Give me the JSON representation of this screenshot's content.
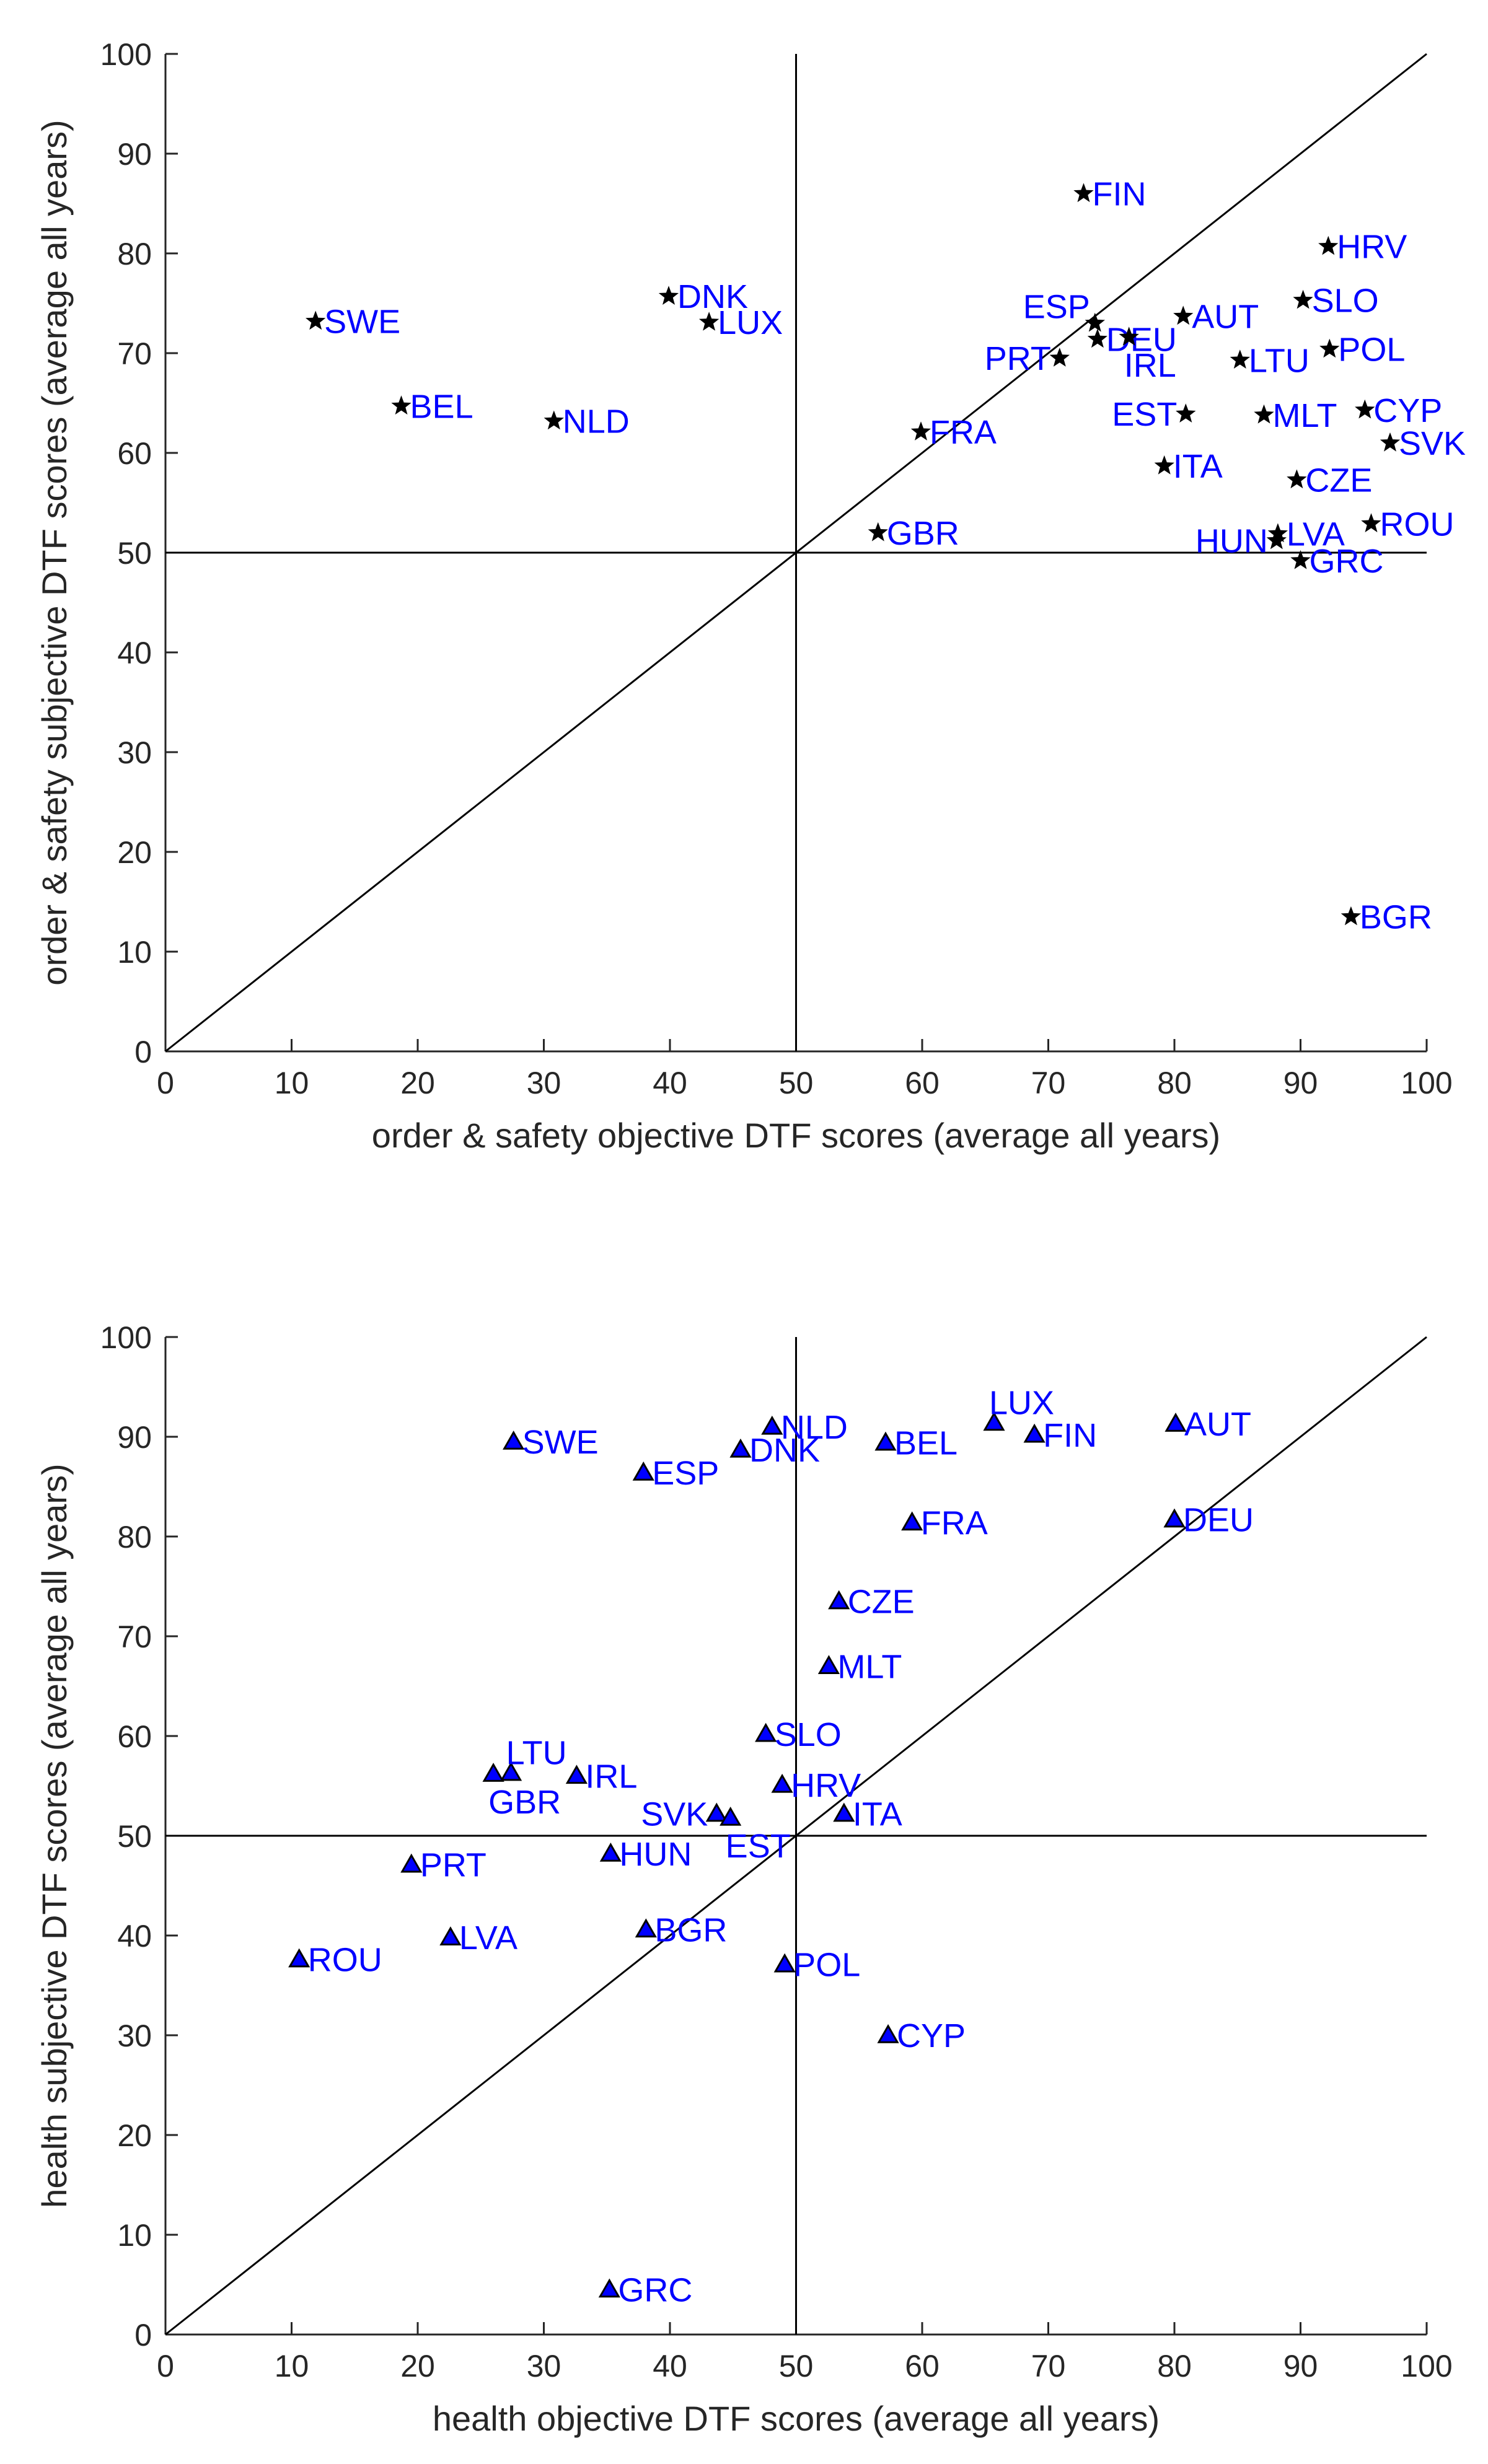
{
  "chart_data": [
    {
      "type": "scatter",
      "xlabel": "order & safety objective DTF scores (average all years)",
      "ylabel": "order & safety subjective DTF scores (average all years)",
      "xlim": [
        0,
        100
      ],
      "ylim": [
        0,
        100
      ],
      "xticks": [
        0,
        10,
        20,
        30,
        40,
        50,
        60,
        70,
        80,
        90,
        100
      ],
      "yticks": [
        0,
        10,
        20,
        30,
        40,
        50,
        60,
        70,
        80,
        90,
        100
      ],
      "reference_lines": {
        "vertical_x": 50,
        "horizontal_y": 50,
        "diagonal": "y = x"
      },
      "marker": "star",
      "marker_color": "#000000",
      "label_color": "#0000ff",
      "points": [
        {
          "label": "FIN",
          "x": 72.8,
          "y": 86.0,
          "pos": "right"
        },
        {
          "label": "HRV",
          "x": 92.2,
          "y": 80.7,
          "pos": "right"
        },
        {
          "label": "DNK",
          "x": 39.9,
          "y": 75.7,
          "pos": "right"
        },
        {
          "label": "SLO",
          "x": 90.2,
          "y": 75.3,
          "pos": "right"
        },
        {
          "label": "SWE",
          "x": 11.9,
          "y": 73.2,
          "pos": "right"
        },
        {
          "label": "LUX",
          "x": 43.1,
          "y": 73.1,
          "pos": "right"
        },
        {
          "label": "AUT",
          "x": 80.7,
          "y": 73.7,
          "pos": "right"
        },
        {
          "label": "ESP",
          "x": 73.7,
          "y": 73.0,
          "pos": "ul"
        },
        {
          "label": "DEU",
          "x": 73.9,
          "y": 71.4,
          "pos": "right"
        },
        {
          "label": "IRL",
          "x": 76.4,
          "y": 71.6,
          "pos": "below"
        },
        {
          "label": "PRT",
          "x": 70.9,
          "y": 69.5,
          "pos": "left"
        },
        {
          "label": "LTU",
          "x": 85.2,
          "y": 69.3,
          "pos": "right"
        },
        {
          "label": "POL",
          "x": 92.3,
          "y": 70.4,
          "pos": "right"
        },
        {
          "label": "BEL",
          "x": 18.7,
          "y": 64.7,
          "pos": "right"
        },
        {
          "label": "NLD",
          "x": 30.8,
          "y": 63.2,
          "pos": "right"
        },
        {
          "label": "EST",
          "x": 80.9,
          "y": 63.9,
          "pos": "left"
        },
        {
          "label": "MLT",
          "x": 87.1,
          "y": 63.8,
          "pos": "right"
        },
        {
          "label": "CYP",
          "x": 95.1,
          "y": 64.3,
          "pos": "right"
        },
        {
          "label": "FRA",
          "x": 59.9,
          "y": 62.1,
          "pos": "right"
        },
        {
          "label": "SVK",
          "x": 97.1,
          "y": 61.0,
          "pos": "right"
        },
        {
          "label": "ITA",
          "x": 79.2,
          "y": 58.7,
          "pos": "right"
        },
        {
          "label": "CZE",
          "x": 89.7,
          "y": 57.3,
          "pos": "right"
        },
        {
          "label": "GBR",
          "x": 56.5,
          "y": 52.0,
          "pos": "right"
        },
        {
          "label": "ROU",
          "x": 95.6,
          "y": 52.9,
          "pos": "right"
        },
        {
          "label": "HUN",
          "x": 88.1,
          "y": 51.2,
          "pos": "left"
        },
        {
          "label": "LVA",
          "x": 88.2,
          "y": 51.9,
          "pos": "right"
        },
        {
          "label": "GRC",
          "x": 90.0,
          "y": 49.2,
          "pos": "right"
        },
        {
          "label": "BGR",
          "x": 94.0,
          "y": 13.5,
          "pos": "right"
        }
      ]
    },
    {
      "type": "scatter",
      "xlabel": "health objective DTF scores (average all years)",
      "ylabel": "health subjective DTF scores (average all years)",
      "xlim": [
        0,
        100
      ],
      "ylim": [
        0,
        100
      ],
      "xticks": [
        0,
        10,
        20,
        30,
        40,
        50,
        60,
        70,
        80,
        90,
        100
      ],
      "yticks": [
        0,
        10,
        20,
        30,
        40,
        50,
        60,
        70,
        80,
        90,
        100
      ],
      "reference_lines": {
        "vertical_x": 50,
        "horizontal_y": 50,
        "diagonal": "y = x"
      },
      "marker": "triangle",
      "marker_color": "#0000ff",
      "label_color": "#0000ff",
      "points": [
        {
          "label": "LUX",
          "x": 65.7,
          "y": 91.4,
          "pos": "above"
        },
        {
          "label": "AUT",
          "x": 80.1,
          "y": 91.3,
          "pos": "right"
        },
        {
          "label": "NLD",
          "x": 48.1,
          "y": 91.0,
          "pos": "right"
        },
        {
          "label": "FIN",
          "x": 68.9,
          "y": 90.2,
          "pos": "right"
        },
        {
          "label": "SWE",
          "x": 27.6,
          "y": 89.5,
          "pos": "right"
        },
        {
          "label": "BEL",
          "x": 57.1,
          "y": 89.4,
          "pos": "right"
        },
        {
          "label": "DNK",
          "x": 45.6,
          "y": 88.7,
          "pos": "right"
        },
        {
          "label": "ESP",
          "x": 37.9,
          "y": 86.4,
          "pos": "right"
        },
        {
          "label": "DEU",
          "x": 80.0,
          "y": 81.7,
          "pos": "right"
        },
        {
          "label": "FRA",
          "x": 59.2,
          "y": 81.4,
          "pos": "right"
        },
        {
          "label": "CZE",
          "x": 53.4,
          "y": 73.5,
          "pos": "right"
        },
        {
          "label": "MLT",
          "x": 52.6,
          "y": 67.0,
          "pos": "right"
        },
        {
          "label": "SLO",
          "x": 47.6,
          "y": 60.2,
          "pos": "right"
        },
        {
          "label": "LTU",
          "x": 27.4,
          "y": 56.3,
          "pos": "above"
        },
        {
          "label": "GBR",
          "x": 26.0,
          "y": 56.2,
          "pos": "below"
        },
        {
          "label": "IRL",
          "x": 32.6,
          "y": 56.0,
          "pos": "right"
        },
        {
          "label": "HRV",
          "x": 48.9,
          "y": 55.1,
          "pos": "right"
        },
        {
          "label": "SVK",
          "x": 43.7,
          "y": 52.2,
          "pos": "left"
        },
        {
          "label": "EST",
          "x": 44.8,
          "y": 51.8,
          "pos": "below"
        },
        {
          "label": "ITA",
          "x": 53.8,
          "y": 52.2,
          "pos": "right"
        },
        {
          "label": "HUN",
          "x": 35.3,
          "y": 48.2,
          "pos": "right"
        },
        {
          "label": "PRT",
          "x": 19.5,
          "y": 47.1,
          "pos": "right"
        },
        {
          "label": "BGR",
          "x": 38.1,
          "y": 40.6,
          "pos": "right"
        },
        {
          "label": "LVA",
          "x": 22.6,
          "y": 39.8,
          "pos": "right"
        },
        {
          "label": "ROU",
          "x": 10.6,
          "y": 37.6,
          "pos": "right"
        },
        {
          "label": "POL",
          "x": 49.1,
          "y": 37.1,
          "pos": "right"
        },
        {
          "label": "CYP",
          "x": 57.3,
          "y": 30.0,
          "pos": "right"
        },
        {
          "label": "GRC",
          "x": 35.2,
          "y": 4.5,
          "pos": "right"
        }
      ]
    }
  ]
}
